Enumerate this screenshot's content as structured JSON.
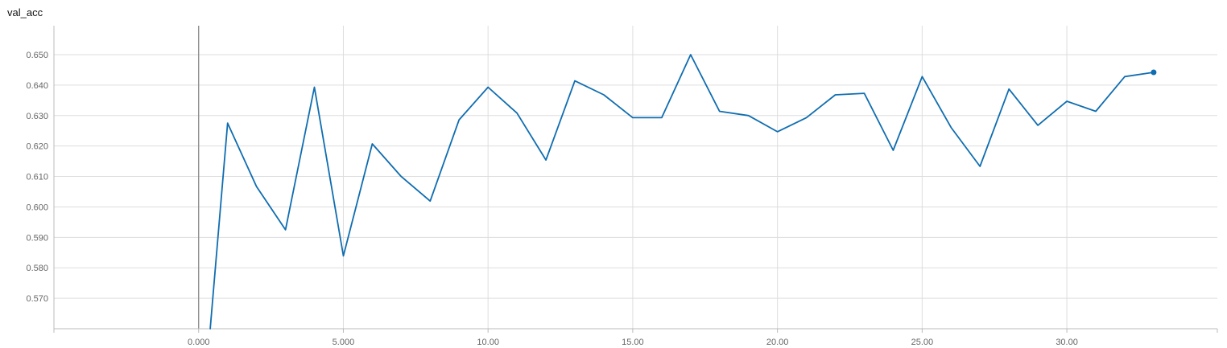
{
  "chart_data": {
    "type": "line",
    "title": "val_acc",
    "xlabel": "",
    "ylabel": "",
    "xlim": [
      -5.0,
      35.2
    ],
    "ylim": [
      0.56,
      0.6595
    ],
    "x_ticks": [
      0,
      5,
      10,
      15,
      20,
      25,
      30
    ],
    "x_tick_labels": [
      "0.000",
      "5.000",
      "10.00",
      "15.00",
      "20.00",
      "25.00",
      "30.00"
    ],
    "y_ticks": [
      0.57,
      0.58,
      0.59,
      0.6,
      0.61,
      0.62,
      0.63,
      0.64,
      0.65
    ],
    "y_tick_labels": [
      "0.570",
      "0.580",
      "0.590",
      "0.600",
      "0.610",
      "0.620",
      "0.630",
      "0.640",
      "0.650"
    ],
    "grid": true,
    "line_color": "#0f6db0",
    "zero_line_color": "#888888",
    "grid_color": "#dddddd",
    "series": [
      {
        "name": "",
        "x": [
          0.4,
          1,
          2,
          3,
          4,
          5,
          6,
          7,
          8,
          9,
          10,
          11,
          12,
          13,
          14,
          15,
          16,
          17,
          18,
          19,
          20,
          21,
          22,
          23,
          24,
          25,
          26,
          27,
          28,
          29,
          30,
          31,
          32,
          33
        ],
        "y": [
          0.56,
          0.6275,
          0.6067,
          0.5925,
          0.6393,
          0.5839,
          0.6207,
          0.61,
          0.6019,
          0.6286,
          0.6393,
          0.6308,
          0.6154,
          0.6414,
          0.6368,
          0.6293,
          0.6293,
          0.65,
          0.6314,
          0.63,
          0.6247,
          0.6293,
          0.6368,
          0.6373,
          0.6186,
          0.6428,
          0.6261,
          0.6133,
          0.6387,
          0.6268,
          0.6347,
          0.6314,
          0.6428,
          0.6442
        ]
      }
    ]
  }
}
